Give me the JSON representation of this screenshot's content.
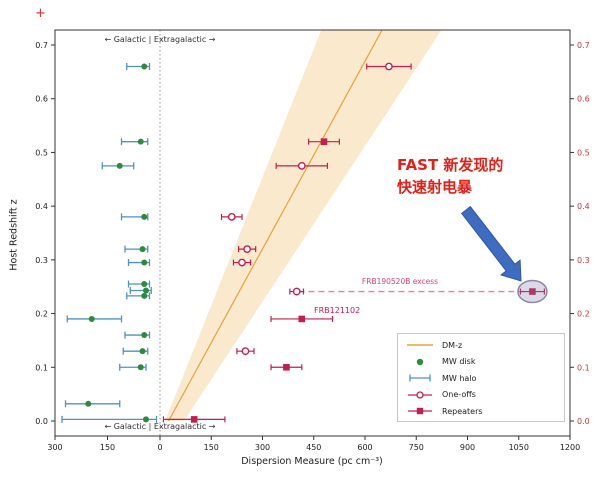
{
  "figure": {
    "crop_mark": "+"
  },
  "chart_data": {
    "type": "scatter",
    "x_axis": {
      "label": "Dispersion Measure (pc cm⁻³)",
      "galactic_range": [
        300,
        0
      ],
      "galactic_ticks": [
        300,
        150,
        0
      ],
      "extragalactic_range": [
        0,
        1200
      ],
      "extragalactic_ticks": [
        150,
        300,
        450,
        600,
        750,
        900,
        1050,
        1200
      ]
    },
    "y_axis": {
      "label": "Host Redshift z",
      "range": [
        0,
        0.7
      ],
      "ticks": [
        0,
        0.1,
        0.2,
        0.3,
        0.4,
        0.5,
        0.6,
        0.7
      ]
    },
    "region_label": "←  Galactic | Extragalactic  →",
    "dm_z_relation": {
      "label": "DM-z",
      "line": {
        "from": [
          25,
          0
        ],
        "to": [
          650,
          0.728
        ]
      },
      "band": [
        [
          15,
          0
        ],
        [
          472,
          0.728
        ],
        [
          824,
          0.728
        ],
        [
          70,
          0
        ]
      ]
    },
    "series": {
      "mw_disk": {
        "label": "MW disk",
        "points": [
          [
            0.66,
            45
          ],
          [
            0.52,
            55
          ],
          [
            0.475,
            115
          ],
          [
            0.38,
            45
          ],
          [
            0.32,
            50
          ],
          [
            0.295,
            45
          ],
          [
            0.255,
            45
          ],
          [
            0.243,
            40
          ],
          [
            0.233,
            45
          ],
          [
            0.19,
            195
          ],
          [
            0.16,
            45
          ],
          [
            0.13,
            50
          ],
          [
            0.1,
            55
          ],
          [
            0.032,
            205
          ],
          [
            0.003,
            40
          ]
        ]
      },
      "mw_halo": {
        "label": "MW halo",
        "bars": [
          [
            0.66,
            30,
            95
          ],
          [
            0.52,
            35,
            110
          ],
          [
            0.475,
            75,
            165
          ],
          [
            0.38,
            35,
            110
          ],
          [
            0.32,
            35,
            100
          ],
          [
            0.295,
            30,
            90
          ],
          [
            0.255,
            30,
            90
          ],
          [
            0.243,
            25,
            85
          ],
          [
            0.233,
            30,
            95
          ],
          [
            0.19,
            110,
            265
          ],
          [
            0.16,
            30,
            100
          ],
          [
            0.13,
            35,
            105
          ],
          [
            0.1,
            40,
            115
          ],
          [
            0.032,
            115,
            270
          ],
          [
            0.003,
            10,
            280
          ]
        ]
      },
      "one_offs": {
        "label": "One-offs",
        "points": [
          [
            0.66,
            670,
            65
          ],
          [
            0.475,
            415,
            75
          ],
          [
            0.38,
            210,
            30
          ],
          [
            0.32,
            255,
            25
          ],
          [
            0.295,
            240,
            25
          ],
          [
            0.241,
            400,
            20
          ],
          [
            0.13,
            250,
            25
          ]
        ]
      },
      "repeaters": {
        "label": "Repeaters",
        "points": [
          [
            0.52,
            480,
            45
          ],
          [
            0.19,
            415,
            90
          ],
          [
            0.1,
            370,
            45
          ],
          [
            0.003,
            100,
            90
          ],
          [
            0.241,
            1090,
            35
          ]
        ]
      }
    },
    "annotations": {
      "excess": {
        "label": "FRB190520B excess",
        "z": 0.241,
        "dm_from": 405,
        "dm_to": 1090
      },
      "frb121102": {
        "label": "FRB121102",
        "z": 0.19,
        "dm": 415
      },
      "highlight": {
        "z": 0.241,
        "dm": 1090
      },
      "callout_line1": "FAST 新发现的",
      "callout_line2": "快速射电暴"
    },
    "legend": [
      {
        "label": "DM-z",
        "marker": "line"
      },
      {
        "label": "MW disk",
        "marker": "dot"
      },
      {
        "label": "MW halo",
        "marker": "errbar"
      },
      {
        "label": "One-offs",
        "marker": "open-circle"
      },
      {
        "label": "Repeaters",
        "marker": "square"
      }
    ],
    "colors": {
      "band": "#f5cf8e",
      "dmz_line": "#e5a33e",
      "mw_disk": "#2e8b3d",
      "mw_halo": "#4f93c0",
      "frb": "#c31e4e",
      "excess_line": "#e87fa8",
      "highlight": "#8b85ad",
      "callout": "#e32119",
      "arrow": "#3d6cc0",
      "right_axis": "#c03a3a"
    }
  }
}
